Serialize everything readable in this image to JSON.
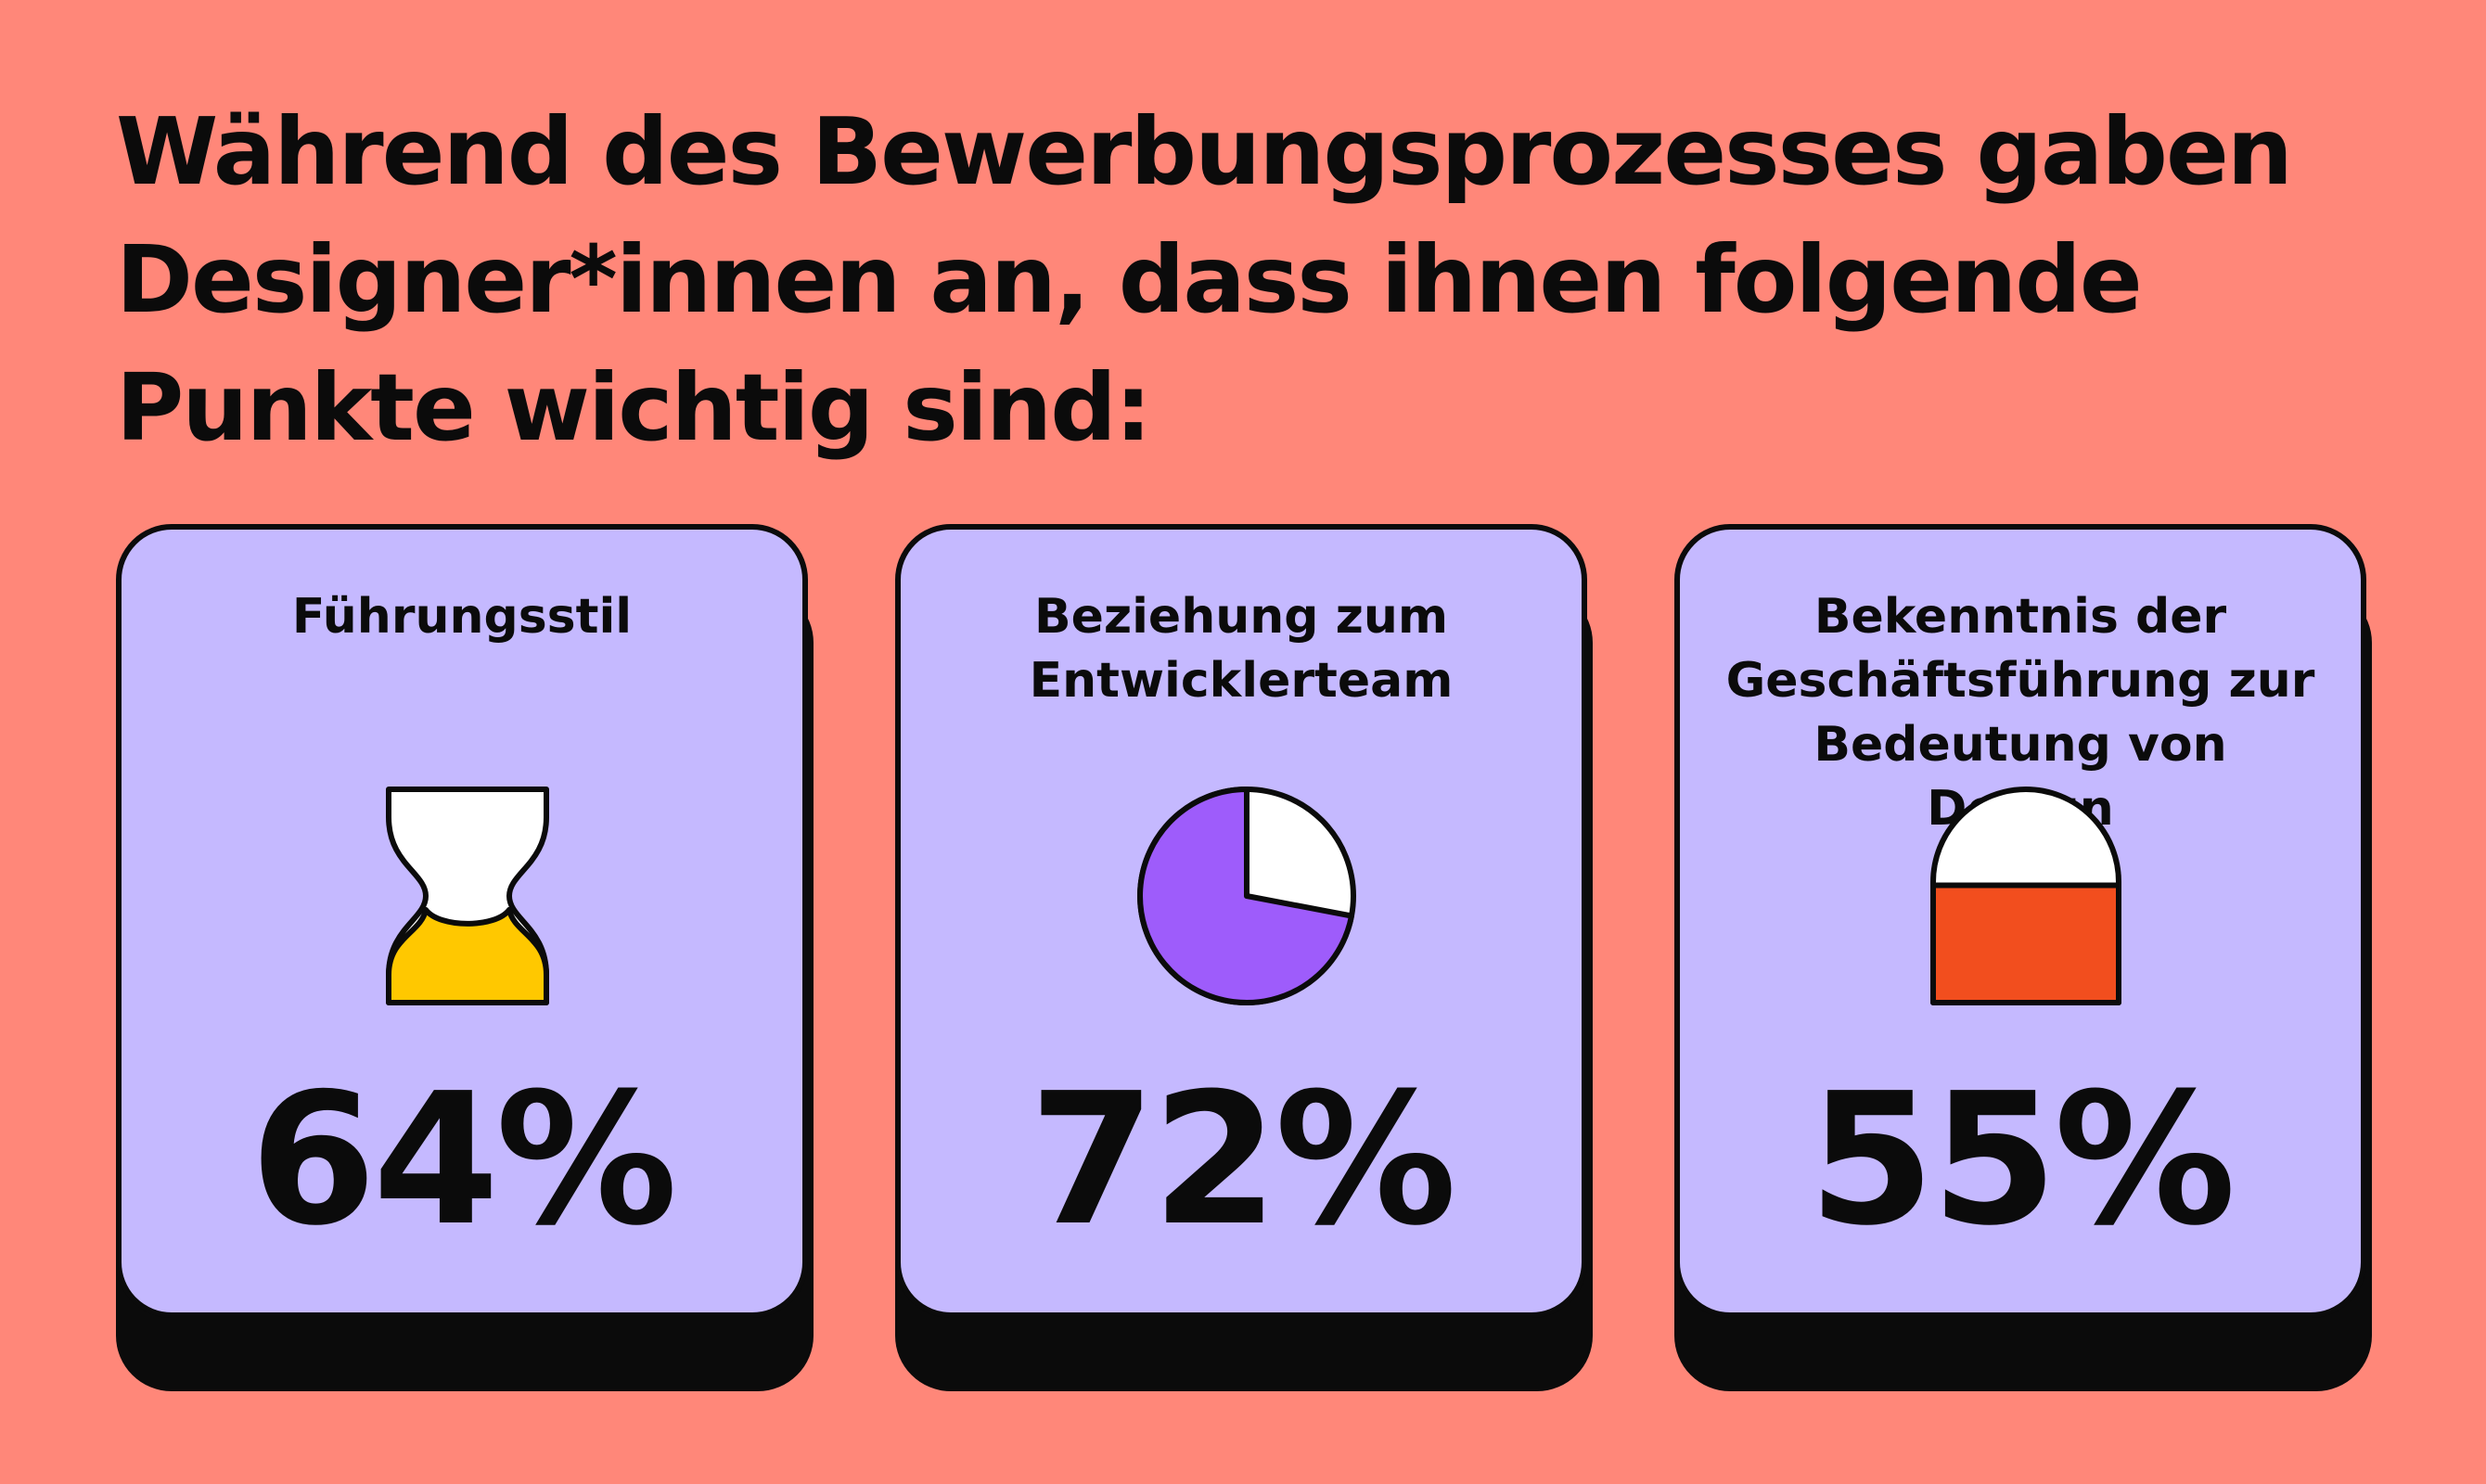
{
  "headline": "Während des Bewerbungsprozesses gaben Designer*innen an, dass ihnen folgende Punkte wichtig sind:",
  "colors": {
    "background": "#ff8779",
    "card": "#c5b9ff",
    "ink": "#0b0b0b",
    "empty": "#ffffff",
    "hourglass_fill": "#ffc800",
    "pie_fill": "#9e5cfb",
    "arch_fill": "#f24e1e"
  },
  "chart_data": {
    "type": "pictogram",
    "title": "Während des Bewerbungsprozesses gaben Designer*innen an, dass ihnen folgende Punkte wichtig sind:",
    "unit": "%",
    "items": [
      {
        "label": "Führungsstil",
        "value": 64,
        "display": "64%",
        "icon": "hourglass-icon"
      },
      {
        "label": "Beziehung zum Entwicklerteam",
        "value": 72,
        "display": "72%",
        "icon": "pie-chart-icon"
      },
      {
        "label": "Bekenntnis der Geschäftsführung zur Bedeutung von Design",
        "value": 55,
        "display": "55%",
        "icon": "arch-fill-icon"
      }
    ]
  }
}
